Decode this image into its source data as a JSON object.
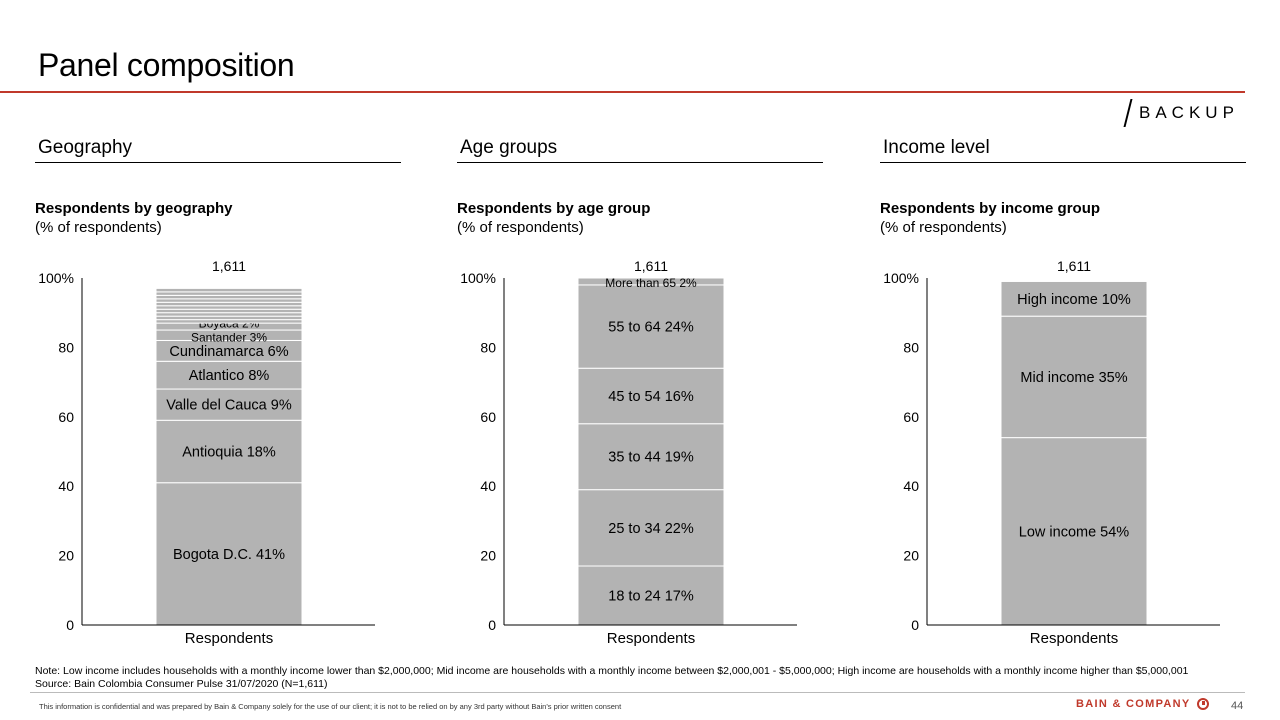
{
  "slide": {
    "title": "Panel composition",
    "tag": "BACKUP",
    "note": "Note: Low income includes households with a monthly income lower than $2,000,000; Mid income are households with a monthly income between $2,000,001 - $5,000,000; High income are households with a monthly income higher than $5,000,001",
    "source": "Source: Bain Colombia Consumer Pulse 31/07/2020 (N=1,611)",
    "footer": "This information is confidential and was prepared by Bain & Company solely for the use of our client; it is not to be relied on by any 3rd party without Bain's prior written consent",
    "logo": "BAIN & COMPANY",
    "page_number": "44"
  },
  "panels": [
    {
      "header": "Geography",
      "chart_title": "Respondents by geography",
      "chart_subtitle": "(% of respondents)"
    },
    {
      "header": "Age groups",
      "chart_title": "Respondents by age group",
      "chart_subtitle": "(% of respondents)"
    },
    {
      "header": "Income level",
      "chart_title": "Respondents by income group",
      "chart_subtitle": "(% of respondents)"
    }
  ],
  "colors": {
    "bar": "#b3b3b3",
    "separator": "#ffffff",
    "accent": "#c0392b"
  },
  "chart_data": [
    {
      "type": "bar",
      "stacked": true,
      "categories": [
        "Respondents"
      ],
      "total_label": "1,611",
      "ylim": [
        0,
        100
      ],
      "yticks": [
        "0",
        "20",
        "40",
        "60",
        "80",
        "100%"
      ],
      "series": [
        {
          "name": "Bogota D.C.",
          "value": 41,
          "label": "Bogota D.C. 41%"
        },
        {
          "name": "Antioquia",
          "value": 18,
          "label": "Antioquia 18%"
        },
        {
          "name": "Valle del Cauca",
          "value": 9,
          "label": "Valle del Cauca 9%"
        },
        {
          "name": "Atlantico",
          "value": 8,
          "label": "Atlantico 8%"
        },
        {
          "name": "Cundinamarca",
          "value": 6,
          "label": "Cundinamarca 6%"
        },
        {
          "name": "Santander",
          "value": 3,
          "label": "Santander 3%"
        },
        {
          "name": "Boyaca",
          "value": 2,
          "label": "Boyaca 2%"
        },
        {
          "value": 1
        },
        {
          "value": 1
        },
        {
          "value": 1
        },
        {
          "value": 1
        },
        {
          "value": 1
        },
        {
          "value": 1
        },
        {
          "value": 1
        },
        {
          "value": 1
        },
        {
          "value": 1
        },
        {
          "value": 1
        }
      ]
    },
    {
      "type": "bar",
      "stacked": true,
      "categories": [
        "Respondents"
      ],
      "total_label": "1,611",
      "ylim": [
        0,
        100
      ],
      "yticks": [
        "0",
        "20",
        "40",
        "60",
        "80",
        "100%"
      ],
      "series": [
        {
          "name": "18 to 24",
          "value": 17,
          "label": "18 to 24 17%"
        },
        {
          "name": "25 to 34",
          "value": 22,
          "label": "25 to 34 22%"
        },
        {
          "name": "35 to 44",
          "value": 19,
          "label": "35 to 44 19%"
        },
        {
          "name": "45 to 54",
          "value": 16,
          "label": "45 to 54 16%"
        },
        {
          "name": "55 to 64",
          "value": 24,
          "label": "55 to 64 24%"
        },
        {
          "name": "More than 65",
          "value": 2,
          "label": "More than 65 2%"
        }
      ]
    },
    {
      "type": "bar",
      "stacked": true,
      "categories": [
        "Respondents"
      ],
      "total_label": "1,611",
      "ylim": [
        0,
        100
      ],
      "yticks": [
        "0",
        "20",
        "40",
        "60",
        "80",
        "100%"
      ],
      "series": [
        {
          "name": "Low income",
          "value": 54,
          "label": "Low income 54%"
        },
        {
          "name": "Mid income",
          "value": 35,
          "label": "Mid income 35%"
        },
        {
          "name": "High income",
          "value": 10,
          "label": "High income 10%"
        }
      ]
    }
  ]
}
